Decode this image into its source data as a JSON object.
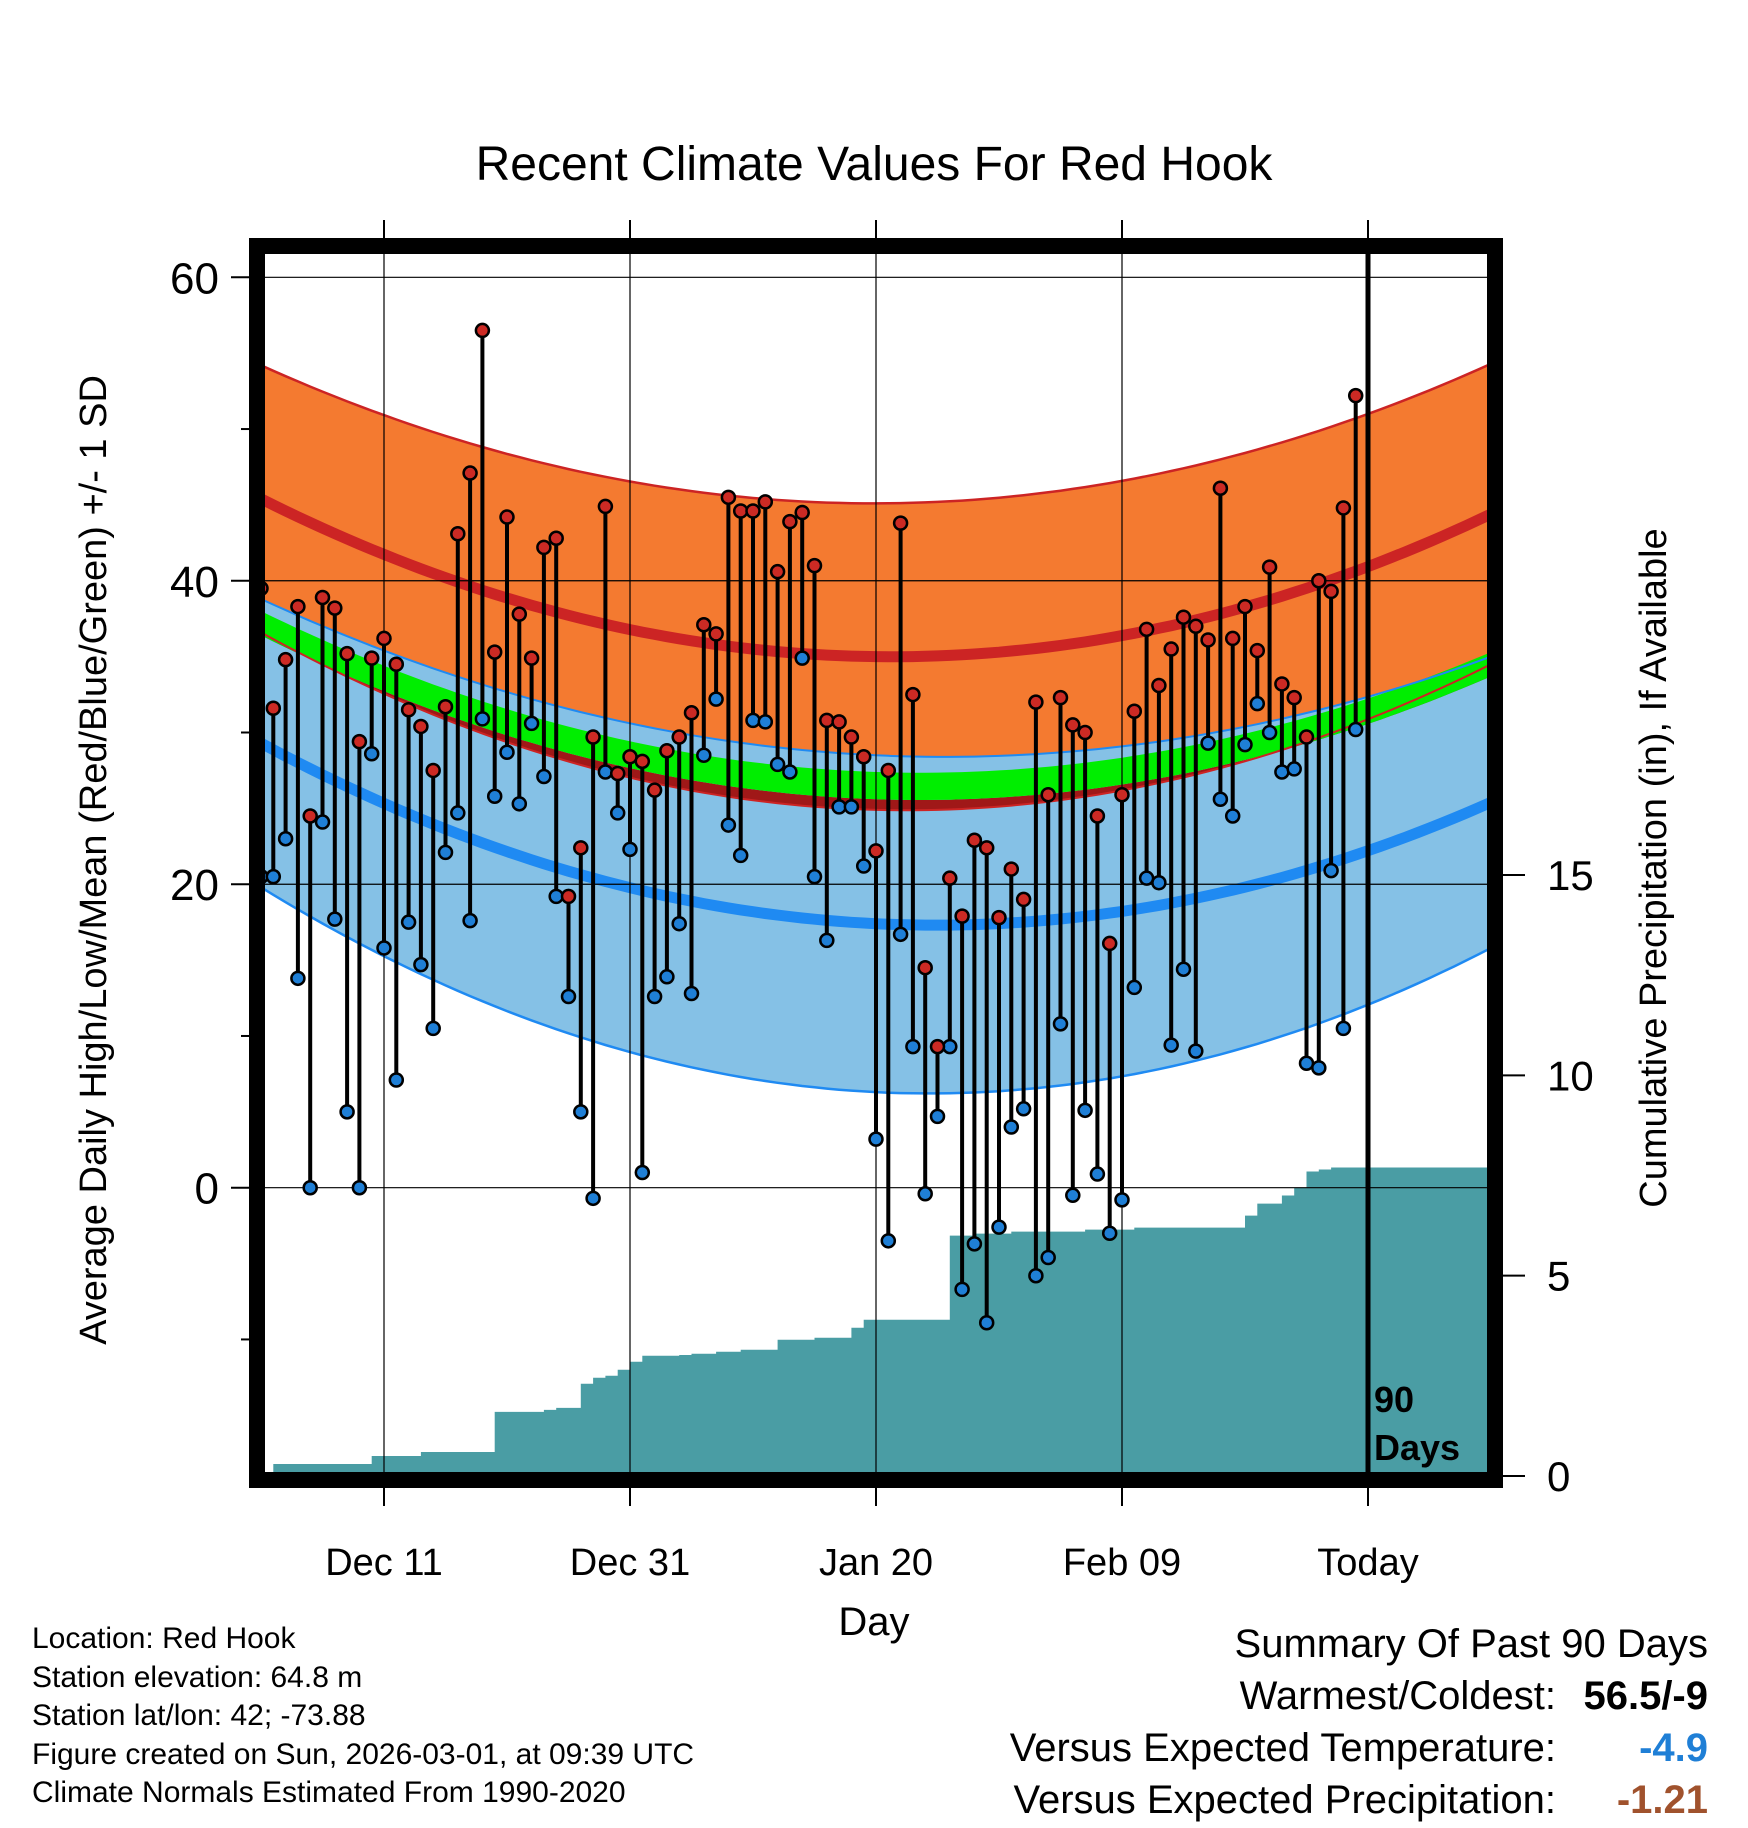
{
  "chart_data": {
    "type": "line",
    "title": "Recent Climate Values For Red Hook",
    "xlabel": "Day",
    "ylabel": "Average Daily High/Low/Mean (Red/Blue/Green) +/- 1 SD",
    "y2label": "Cumulative Precipitation (in), If Available",
    "ylim": [
      -19,
      61.8
    ],
    "y_ticks": [
      0,
      20,
      40,
      60
    ],
    "y2lim": [
      0,
      30.6
    ],
    "y2_ticks": [
      0,
      5,
      10,
      15
    ],
    "x_range_days": [
      0,
      100
    ],
    "x_ticks": [
      {
        "day": 10,
        "label": "Dec 11"
      },
      {
        "day": 30,
        "label": "Dec 31"
      },
      {
        "day": 50,
        "label": "Jan 20"
      },
      {
        "day": 70,
        "label": "Feb 09"
      },
      {
        "day": 90,
        "label": "Today"
      }
    ],
    "today_day": 90,
    "today_annotation": [
      "90",
      "Days"
    ],
    "normals": {
      "high_mean": [
        45.4,
        35.0,
        44.4
      ],
      "high_sd": [
        8.8,
        10.1,
        9.9
      ],
      "low_mean": [
        29.3,
        17.4,
        25.4
      ],
      "low_sd": [
        9.5,
        11.1,
        9.6
      ],
      "mean_mean": [
        37.2,
        26.5,
        34.5
      ],
      "mean_sd": [
        0.8,
        0.9,
        0.8
      ]
    },
    "series": [
      {
        "name": "Daily High",
        "color": "#cc2a24",
        "values": [
          39.5,
          31.6,
          34.8,
          38.3,
          24.5,
          38.9,
          38.2,
          35.2,
          29.4,
          34.9,
          36.2,
          34.5,
          31.5,
          30.4,
          27.5,
          31.7,
          43.1,
          47.1,
          56.5,
          35.3,
          44.2,
          37.8,
          34.9,
          42.2,
          42.8,
          19.2,
          22.4,
          29.7,
          44.9,
          27.3,
          28.4,
          28.1,
          26.2,
          28.8,
          29.7,
          31.3,
          37.1,
          36.5,
          45.5,
          44.6,
          44.6,
          45.2,
          40.6,
          43.9,
          44.5,
          41.0,
          30.8,
          30.7,
          29.7,
          28.4,
          22.2,
          27.5,
          43.8,
          32.5,
          14.5,
          9.3,
          20.4,
          17.9,
          22.9,
          22.4,
          17.8,
          21.0,
          19.0,
          32.0,
          25.9,
          32.3,
          30.5,
          30.0,
          24.5,
          16.1,
          25.9,
          31.4,
          36.8,
          33.1,
          35.5,
          37.6,
          37.0,
          36.1,
          46.1,
          36.2,
          38.3,
          35.4,
          40.9,
          33.2,
          32.3,
          29.7,
          40.0,
          39.3,
          44.8,
          52.2
        ]
      },
      {
        "name": "Daily Low",
        "color": "#1f7fd6",
        "values": [
          20.5,
          20.5,
          23.0,
          13.8,
          0.0,
          24.1,
          17.7,
          5.0,
          0.0,
          28.6,
          15.8,
          7.1,
          17.5,
          14.7,
          10.5,
          22.1,
          24.7,
          17.6,
          30.9,
          25.8,
          28.7,
          25.3,
          30.6,
          27.1,
          19.2,
          12.6,
          5.0,
          -0.7,
          27.4,
          24.7,
          22.3,
          1.0,
          12.6,
          13.9,
          17.4,
          12.8,
          28.5,
          32.2,
          23.9,
          21.9,
          30.8,
          30.7,
          27.9,
          27.4,
          34.9,
          20.5,
          16.3,
          25.1,
          25.1,
          21.2,
          3.2,
          -3.5,
          16.7,
          9.3,
          -0.4,
          4.7,
          9.3,
          -6.7,
          -3.7,
          -8.9,
          -2.6,
          4.0,
          5.2,
          -5.8,
          -4.6,
          10.8,
          -0.5,
          5.1,
          0.9,
          -3.0,
          -0.8,
          13.2,
          20.4,
          20.1,
          9.4,
          14.4,
          9.0,
          29.3,
          25.6,
          24.5,
          29.2,
          31.9,
          30.0,
          27.4,
          27.6,
          8.2,
          7.9,
          20.9,
          10.5,
          30.2
        ]
      }
    ],
    "precipitation_cumulative": [
      0.3,
      0.3,
      0.3,
      0.3,
      0.3,
      0.3,
      0.3,
      0.3,
      0.5,
      0.5,
      0.5,
      0.5,
      0.6,
      0.6,
      0.6,
      0.6,
      0.6,
      0.6,
      1.6,
      1.6,
      1.6,
      1.6,
      1.65,
      1.7,
      1.7,
      2.3,
      2.45,
      2.5,
      2.65,
      2.85,
      3.0,
      3.0,
      3.0,
      3.02,
      3.05,
      3.05,
      3.1,
      3.1,
      3.15,
      3.15,
      3.15,
      3.4,
      3.4,
      3.4,
      3.45,
      3.45,
      3.45,
      3.7,
      3.9,
      3.9,
      3.9,
      3.9,
      3.9,
      3.9,
      3.9,
      6.0,
      6.0,
      6.05,
      6.05,
      6.05,
      6.1,
      6.1,
      6.1,
      6.1,
      6.1,
      6.1,
      6.15,
      6.15,
      6.15,
      6.15,
      6.2,
      6.2,
      6.2,
      6.2,
      6.2,
      6.2,
      6.2,
      6.2,
      6.2,
      6.5,
      6.8,
      6.8,
      7.0,
      7.2,
      7.6,
      7.65,
      7.7,
      7.7,
      7.7,
      7.7,
      7.7,
      7.7,
      7.7,
      7.7,
      7.7,
      7.7,
      7.7,
      7.7,
      7.7,
      7.7
    ]
  },
  "footer": {
    "location": "Location: Red Hook",
    "elevation": "Station elevation: 64.8 m",
    "latlon": "Station lat/lon: 42; -73.88",
    "created": "Figure created on Sun, 2026-03-01, at 09:39 UTC",
    "normals": "Climate Normals Estimated From 1990-2020"
  },
  "summary": {
    "heading": "Summary Of Past 90 Days",
    "warmest_label": "Warmest/Coldest:",
    "warmest_value": "56.5/-9",
    "temp_label": "Versus Expected Temperature:",
    "temp_value": "-4.9",
    "temp_color": "#1f7fd6",
    "precip_label": "Versus Expected Precipitation:",
    "precip_value": "-1.21",
    "precip_color": "#a0522d"
  },
  "colors": {
    "high_band": "#f47a30",
    "high_line": "#cc2424",
    "low_band": "#85c1e6",
    "low_line": "#1f8af2",
    "mean_band": "#00ee00",
    "overlap": "#a01818",
    "precip": "#4a9da4"
  }
}
